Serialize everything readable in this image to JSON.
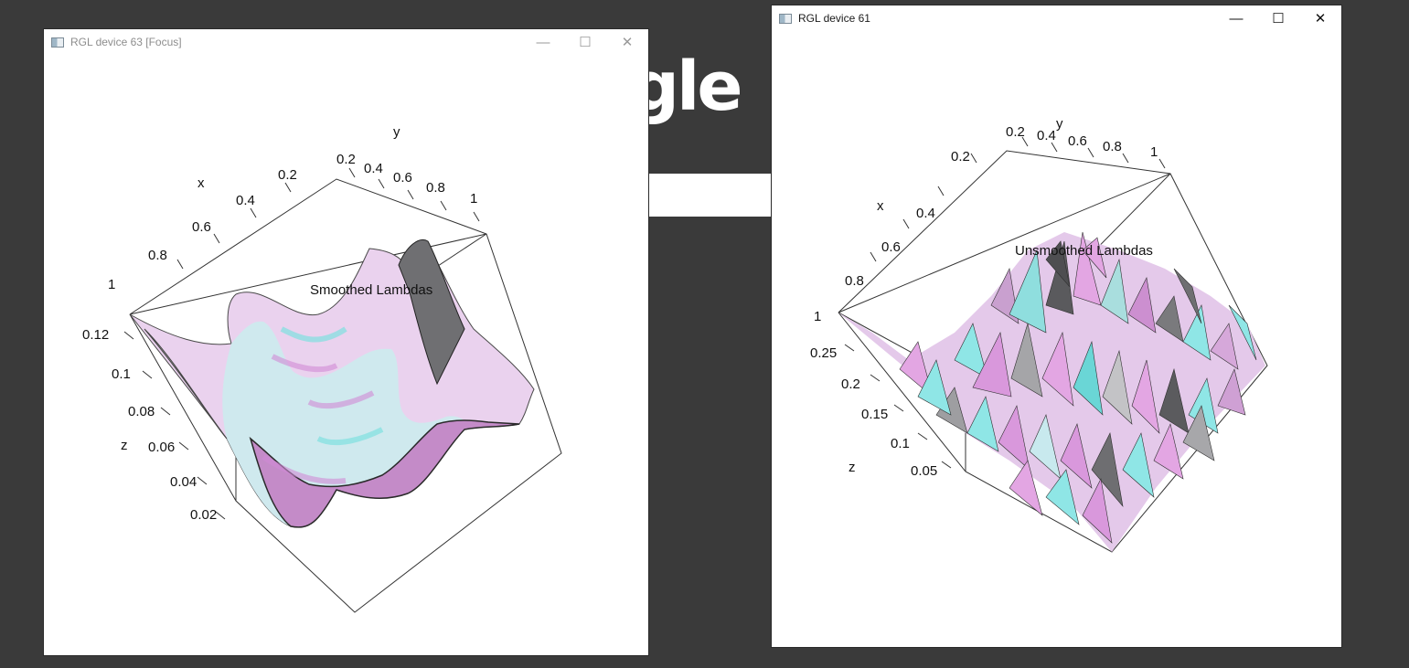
{
  "background": {
    "logo_text": "gle"
  },
  "windows": [
    {
      "title": "RGL device 63 [Focus]",
      "plot_title": "Smoothed Lambdas",
      "axes": {
        "x_label": "x",
        "y_label": "y",
        "z_label": "z",
        "x_ticks": [
          "0.2",
          "0.4",
          "0.6",
          "0.8",
          "1"
        ],
        "y_ticks": [
          "0.2",
          "0.4",
          "0.6",
          "0.8",
          "1"
        ],
        "z_ticks": [
          "0.12",
          "0.1",
          "0.08",
          "0.06",
          "0.04",
          "0.02"
        ]
      },
      "controls": {
        "minimize": "—",
        "maximize": "☐",
        "close": "✕"
      }
    },
    {
      "title": "RGL device 61",
      "plot_title": "Unsmoothed Lambdas",
      "axes": {
        "x_label": "x",
        "y_label": "y",
        "z_label": "z",
        "x_ticks": [
          "0.2",
          "0.4",
          "0.6",
          "0.8",
          "1"
        ],
        "y_ticks": [
          "0.2",
          "0.4",
          "0.6",
          "0.8",
          "1"
        ],
        "z_ticks": [
          "0.25",
          "0.2",
          "0.15",
          "0.1",
          "0.05"
        ]
      },
      "controls": {
        "minimize": "—",
        "maximize": "☐",
        "close": "✕"
      }
    }
  ],
  "colors": {
    "surface_pink": "#e3a6e3",
    "surface_cyan": "#8fe6e6",
    "surface_dark": "#3a3a3a",
    "surface_light": "#f4f0f4",
    "desktop": "#3a3a3a"
  }
}
